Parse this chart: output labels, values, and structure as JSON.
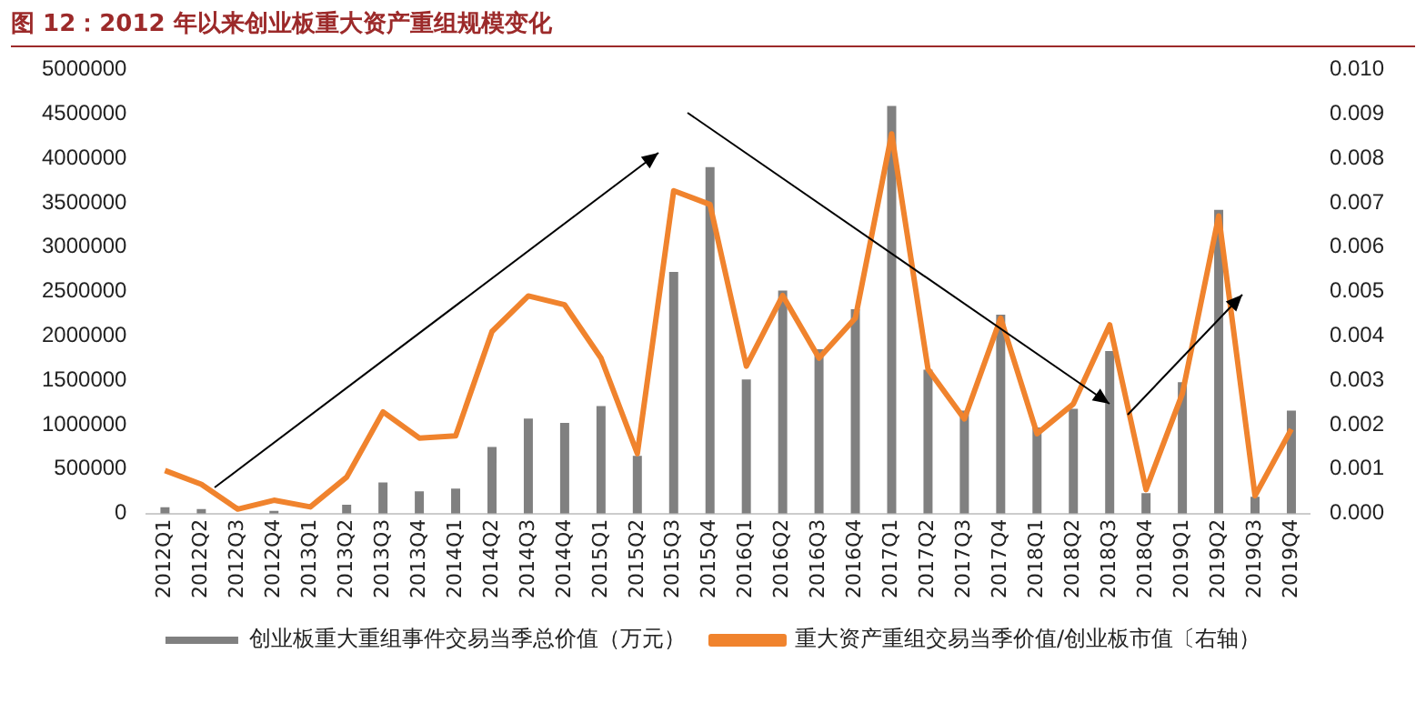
{
  "chart_data": {
    "type": "bar",
    "title": "图 12：2012 年以来创业板重大资产重组规模变化",
    "categories": [
      "2012Q1",
      "2012Q2",
      "2012Q3",
      "2012Q4",
      "2013Q1",
      "2013Q2",
      "2013Q3",
      "2013Q4",
      "2014Q1",
      "2014Q2",
      "2014Q3",
      "2014Q4",
      "2015Q1",
      "2015Q2",
      "2015Q3",
      "2015Q4",
      "2016Q1",
      "2016Q2",
      "2016Q3",
      "2016Q4",
      "2017Q1",
      "2017Q2",
      "2017Q3",
      "2017Q4",
      "2018Q1",
      "2018Q2",
      "2018Q3",
      "2018Q4",
      "2019Q1",
      "2019Q2",
      "2019Q3",
      "2019Q4"
    ],
    "series": [
      {
        "name": "创业板重大重组事件交易当季总价值（万元）",
        "color": "#808080",
        "values": [
          70000,
          50000,
          null,
          30000,
          null,
          100000,
          350000,
          250000,
          280000,
          750000,
          1070000,
          1020000,
          1210000,
          650000,
          2720000,
          3900000,
          1510000,
          2510000,
          1850000,
          2300000,
          4590000,
          1620000,
          1160000,
          2240000,
          970000,
          1180000,
          1830000,
          230000,
          1480000,
          3420000,
          190000,
          1160000
        ]
      },
      {
        "name": "重大资产重组交易当季价值/创业板市值〔右轴）",
        "type": "line",
        "axis": "y2",
        "color": "#f0832d",
        "values": [
          0.00097,
          0.00066,
          0.0001,
          0.0003,
          0.00015,
          0.00082,
          0.00229,
          0.0017,
          0.00175,
          0.0041,
          0.0049,
          0.0047,
          0.0035,
          0.00135,
          0.00727,
          0.00696,
          0.00332,
          0.00491,
          0.0035,
          0.0044,
          0.00855,
          0.00325,
          0.00213,
          0.0044,
          0.0018,
          0.00247,
          0.00425,
          0.00054,
          0.0027,
          0.0067,
          0.0004,
          0.0019
        ]
      }
    ],
    "ylim": [
      0,
      5000000
    ],
    "yticks": [
      0,
      500000,
      1000000,
      1500000,
      2000000,
      2500000,
      3000000,
      3500000,
      4000000,
      4500000,
      5000000
    ],
    "y2lim": [
      0,
      0.01
    ],
    "y2ticks": [
      {
        "value": 0,
        "label": "0.000"
      },
      {
        "value": 0.001,
        "label": "0.001"
      },
      {
        "value": 0.002,
        "label": "0.002"
      },
      {
        "value": 0.003,
        "label": "0.003"
      },
      {
        "value": 0.004,
        "label": "0.004"
      },
      {
        "value": 0.005,
        "label": "0.005"
      },
      {
        "value": 0.006,
        "label": "0.006"
      },
      {
        "value": 0.007,
        "label": "0.007"
      },
      {
        "value": 0.008,
        "label": "0.008"
      },
      {
        "value": 0.009,
        "label": "0.009"
      },
      {
        "value": 0.01,
        "label": "0.010"
      }
    ],
    "grid": false,
    "legend": "bottom",
    "marker": "none",
    "line_style": "solid"
  }
}
